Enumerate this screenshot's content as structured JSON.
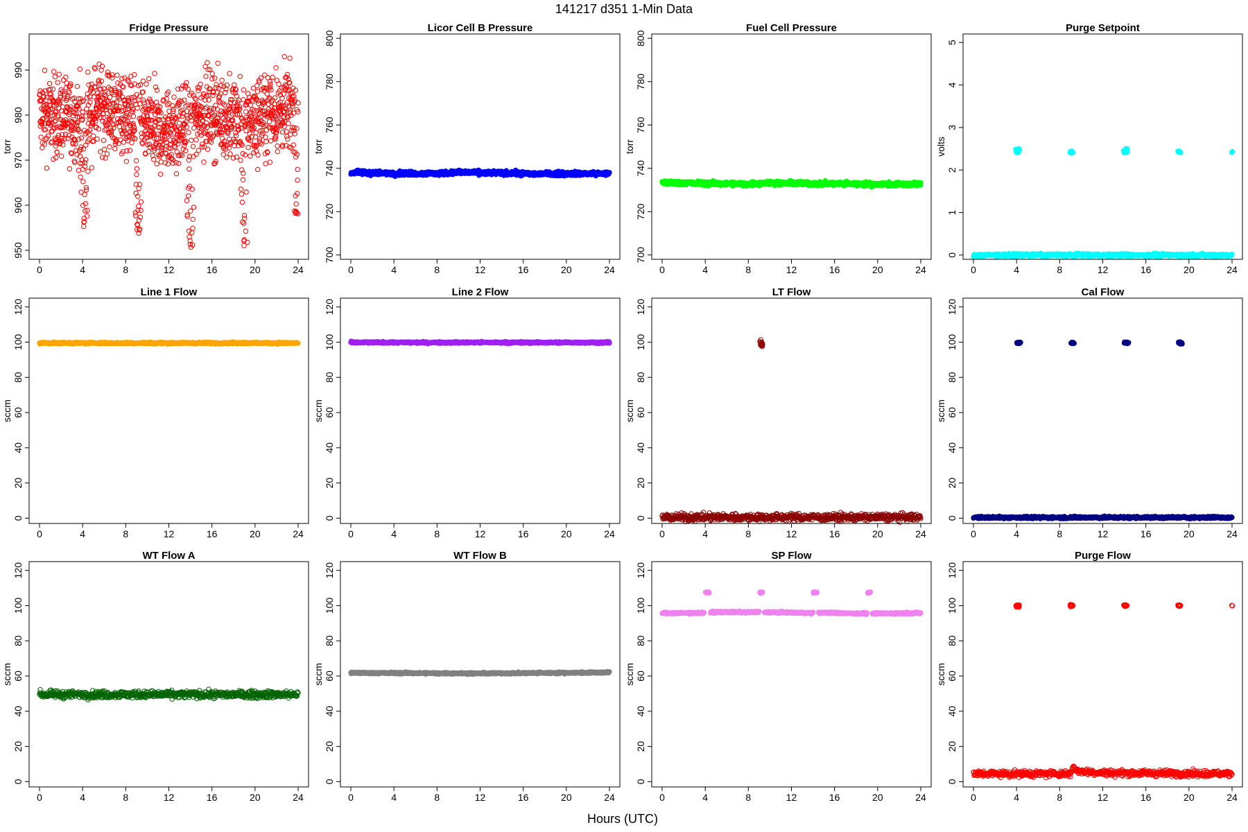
{
  "figure": {
    "title": "141217   d351   1-Min Data",
    "xlabel": "Hours (UTC)"
  },
  "chart_data": [
    {
      "type": "scatter",
      "title": "Fridge Pressure",
      "ylabel": "torr",
      "xlim": [
        0,
        24
      ],
      "ylim": [
        948,
        998
      ],
      "yticks": [
        950,
        960,
        970,
        980,
        990
      ],
      "xticks": [
        0,
        4,
        8,
        12,
        16,
        20,
        24
      ],
      "color": "#ff0000",
      "marker": "open",
      "series": [
        {
          "kind": "noisy",
          "base": [
            [
              0,
              980
            ],
            [
              3.5,
              979
            ],
            [
              5.5,
              982
            ],
            [
              9,
              979
            ],
            [
              11,
              976
            ],
            [
              13,
              977
            ],
            [
              15,
              981
            ],
            [
              18,
              979
            ],
            [
              20,
              979
            ],
            [
              21.5,
              981
            ],
            [
              24,
              981
            ]
          ],
          "spread": 8,
          "dips": [
            {
              "x": 4.1,
              "min": 955
            },
            {
              "x": 9.2,
              "min": 953
            },
            {
              "x": 14,
              "min": 950
            },
            {
              "x": 19,
              "min": 951
            },
            {
              "x": 24,
              "min": 958
            }
          ]
        }
      ]
    },
    {
      "type": "scatter",
      "title": "Licor Cell B Pressure",
      "ylabel": "torr",
      "xlim": [
        0,
        24
      ],
      "ylim": [
        698,
        802
      ],
      "yticks": [
        700,
        720,
        740,
        760,
        780,
        800
      ],
      "xticks": [
        0,
        4,
        8,
        12,
        16,
        20,
        24
      ],
      "color": "#0000ff",
      "marker": "filled",
      "series": [
        {
          "kind": "band",
          "points": [
            [
              0,
              738
            ],
            [
              4,
              737.7
            ],
            [
              8,
              737.6
            ],
            [
              10,
              738.1
            ],
            [
              14,
              737.9
            ],
            [
              17,
              737.4
            ],
            [
              20,
              737.6
            ],
            [
              24,
              737.5
            ]
          ],
          "spread": 1.2
        }
      ]
    },
    {
      "type": "scatter",
      "title": "Fuel Cell Pressure",
      "ylabel": "torr",
      "xlim": [
        0,
        24
      ],
      "ylim": [
        698,
        802
      ],
      "yticks": [
        700,
        720,
        740,
        760,
        780,
        800
      ],
      "xticks": [
        0,
        4,
        8,
        12,
        16,
        20,
        24
      ],
      "color": "#00ff00",
      "marker": "filled",
      "series": [
        {
          "kind": "band",
          "points": [
            [
              0,
              733.5
            ],
            [
              4,
              733
            ],
            [
              8,
              732.8
            ],
            [
              10,
              733.3
            ],
            [
              14,
              733
            ],
            [
              18,
              732.8
            ],
            [
              24,
              732.5
            ]
          ],
          "spread": 1.2
        }
      ]
    },
    {
      "type": "scatter",
      "title": "Purge Setpoint",
      "ylabel": "volts",
      "xlim": [
        0,
        24
      ],
      "ylim": [
        -0.1,
        5.2
      ],
      "yticks": [
        0,
        1,
        2,
        3,
        4,
        5
      ],
      "xticks": [
        0,
        4,
        8,
        12,
        16,
        20,
        24
      ],
      "color": "#00ffff",
      "marker": "filled",
      "series": [
        {
          "kind": "band",
          "points": [
            [
              0,
              0
            ],
            [
              24,
              0
            ]
          ],
          "spread": 0.04
        },
        {
          "kind": "clusters",
          "clusters": [
            {
              "x": 4.1,
              "w": 0.35,
              "y": 2.45,
              "s": 0.06
            },
            {
              "x": 9.1,
              "w": 0.25,
              "y": 2.42,
              "s": 0.03
            },
            {
              "x": 14.1,
              "w": 0.35,
              "y": 2.45,
              "s": 0.06
            },
            {
              "x": 19.1,
              "w": 0.25,
              "y": 2.43,
              "s": 0.03
            },
            {
              "x": 24,
              "w": 0.05,
              "y": 2.42,
              "s": 0.02
            }
          ]
        }
      ]
    },
    {
      "type": "scatter",
      "title": "Line 1 Flow",
      "ylabel": "sccm",
      "xlim": [
        0,
        24
      ],
      "ylim": [
        -3,
        125
      ],
      "yticks": [
        0,
        20,
        40,
        60,
        80,
        100,
        120
      ],
      "xticks": [
        0,
        4,
        8,
        12,
        16,
        20,
        24
      ],
      "color": "#ffa500",
      "marker": "filled",
      "series": [
        {
          "kind": "band",
          "points": [
            [
              0,
              99.5
            ],
            [
              24,
              99.5
            ]
          ],
          "spread": 0.6
        }
      ]
    },
    {
      "type": "scatter",
      "title": "Line 2 Flow",
      "ylabel": "sccm",
      "xlim": [
        0,
        24
      ],
      "ylim": [
        -3,
        125
      ],
      "yticks": [
        0,
        20,
        40,
        60,
        80,
        100,
        120
      ],
      "xticks": [
        0,
        4,
        8,
        12,
        16,
        20,
        24
      ],
      "color": "#a020f0",
      "marker": "filled",
      "series": [
        {
          "kind": "band",
          "points": [
            [
              0,
              99.8
            ],
            [
              24,
              99.8
            ]
          ],
          "spread": 0.6
        }
      ]
    },
    {
      "type": "scatter",
      "title": "LT Flow",
      "ylabel": "sccm",
      "xlim": [
        0,
        24
      ],
      "ylim": [
        -3,
        125
      ],
      "yticks": [
        0,
        20,
        40,
        60,
        80,
        100,
        120
      ],
      "xticks": [
        0,
        4,
        8,
        12,
        16,
        20,
        24
      ],
      "color": "#8b0000",
      "marker": "open",
      "series": [
        {
          "kind": "band",
          "points": [
            [
              0,
              0.5
            ],
            [
              24,
              0.5
            ]
          ],
          "spread": 2.5
        },
        {
          "kind": "clusters",
          "clusters": [
            {
              "x": 9.2,
              "w": 0.25,
              "y": 99.5,
              "s": 1.6
            }
          ]
        }
      ]
    },
    {
      "type": "scatter",
      "title": "Cal Flow",
      "ylabel": "sccm",
      "xlim": [
        0,
        24
      ],
      "ylim": [
        -3,
        125
      ],
      "yticks": [
        0,
        20,
        40,
        60,
        80,
        100,
        120
      ],
      "xticks": [
        0,
        4,
        8,
        12,
        16,
        20,
        24
      ],
      "color": "#000080",
      "marker": "filled",
      "series": [
        {
          "kind": "band",
          "points": [
            [
              0,
              0.4
            ],
            [
              24,
              0.4
            ]
          ],
          "spread": 0.8
        },
        {
          "kind": "clusters",
          "clusters": [
            {
              "x": 4.2,
              "w": 0.35,
              "y": 99.6,
              "s": 0.5
            },
            {
              "x": 9.2,
              "w": 0.3,
              "y": 99.6,
              "s": 0.5
            },
            {
              "x": 14.2,
              "w": 0.4,
              "y": 99.6,
              "s": 0.5
            },
            {
              "x": 19.2,
              "w": 0.35,
              "y": 99.6,
              "s": 0.5
            }
          ]
        }
      ]
    },
    {
      "type": "scatter",
      "title": "WT Flow A",
      "ylabel": "sccm",
      "xlim": [
        0,
        24
      ],
      "ylim": [
        -3,
        125
      ],
      "yticks": [
        0,
        20,
        40,
        60,
        80,
        100,
        120
      ],
      "xticks": [
        0,
        4,
        8,
        12,
        16,
        20,
        24
      ],
      "color": "#006400",
      "marker": "open",
      "series": [
        {
          "kind": "band",
          "points": [
            [
              0,
              49.5
            ],
            [
              24,
              49.5
            ]
          ],
          "spread": 2.5
        }
      ]
    },
    {
      "type": "scatter",
      "title": "WT Flow B",
      "ylabel": "sccm",
      "xlim": [
        0,
        24
      ],
      "ylim": [
        -3,
        125
      ],
      "yticks": [
        0,
        20,
        40,
        60,
        80,
        100,
        120
      ],
      "xticks": [
        0,
        4,
        8,
        12,
        16,
        20,
        24
      ],
      "color": "#808080",
      "marker": "filled",
      "series": [
        {
          "kind": "band",
          "points": [
            [
              0,
              61.8
            ],
            [
              12,
              61.5
            ],
            [
              24,
              62
            ]
          ],
          "spread": 0.6
        }
      ]
    },
    {
      "type": "scatter",
      "title": "SP Flow",
      "ylabel": "sccm",
      "xlim": [
        0,
        24
      ],
      "ylim": [
        -3,
        125
      ],
      "yticks": [
        0,
        20,
        40,
        60,
        80,
        100,
        120
      ],
      "xticks": [
        0,
        4,
        8,
        12,
        16,
        20,
        24
      ],
      "color": "#ee82ee",
      "marker": "filled",
      "series": [
        {
          "kind": "band",
          "points": [
            [
              0,
              95.8
            ],
            [
              3.9,
              95.8
            ]
          ],
          "spread": 0.6
        },
        {
          "kind": "band",
          "points": [
            [
              4.5,
              96.3
            ],
            [
              9,
              96.3
            ]
          ],
          "spread": 0.6
        },
        {
          "kind": "band",
          "points": [
            [
              9.5,
              96.3
            ],
            [
              14,
              95.8
            ]
          ],
          "spread": 0.6
        },
        {
          "kind": "band",
          "points": [
            [
              14.5,
              96
            ],
            [
              19,
              95.5
            ]
          ],
          "spread": 0.6
        },
        {
          "kind": "band",
          "points": [
            [
              19.5,
              95.5
            ],
            [
              24,
              95.8
            ]
          ],
          "spread": 0.6
        },
        {
          "kind": "clusters",
          "clusters": [
            {
              "x": 4.2,
              "w": 0.35,
              "y": 107.5,
              "s": 0.4
            },
            {
              "x": 9.2,
              "w": 0.25,
              "y": 107.5,
              "s": 0.4
            },
            {
              "x": 14.2,
              "w": 0.35,
              "y": 107.5,
              "s": 0.4
            },
            {
              "x": 19.2,
              "w": 0.25,
              "y": 107.5,
              "s": 0.4
            }
          ]
        }
      ]
    },
    {
      "type": "scatter",
      "title": "Purge Flow",
      "ylabel": "sccm",
      "xlim": [
        0,
        24
      ],
      "ylim": [
        -3,
        125
      ],
      "yticks": [
        0,
        20,
        40,
        60,
        80,
        100,
        120
      ],
      "xticks": [
        0,
        4,
        8,
        12,
        16,
        20,
        24
      ],
      "color": "#ff0000",
      "marker": "open",
      "series": [
        {
          "kind": "band",
          "points": [
            [
              0,
              4.5
            ],
            [
              9,
              4.5
            ],
            [
              9.3,
              9
            ],
            [
              9.6,
              6
            ],
            [
              12,
              5
            ],
            [
              24,
              4.5
            ]
          ],
          "spread": 2.2
        },
        {
          "kind": "clusters",
          "clusters": [
            {
              "x": 4.1,
              "w": 0.3,
              "y": 100,
              "s": 0.6
            },
            {
              "x": 9.1,
              "w": 0.25,
              "y": 100,
              "s": 0.6
            },
            {
              "x": 14.1,
              "w": 0.3,
              "y": 100,
              "s": 0.6
            },
            {
              "x": 19.1,
              "w": 0.25,
              "y": 100,
              "s": 0.6
            },
            {
              "x": 24,
              "w": 0.05,
              "y": 100,
              "s": 0.4
            }
          ]
        }
      ]
    }
  ]
}
